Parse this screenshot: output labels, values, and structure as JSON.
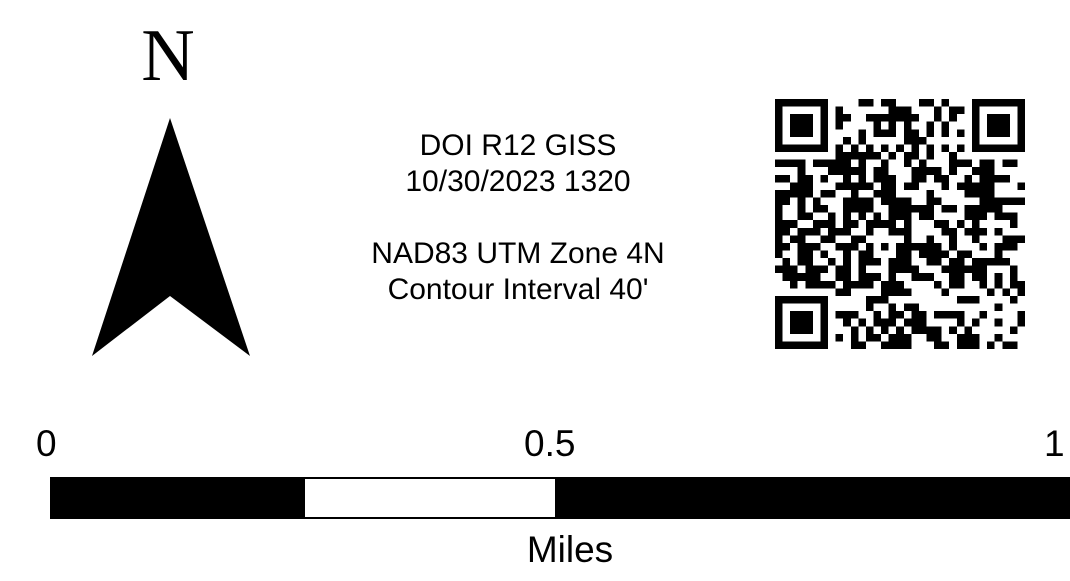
{
  "north_arrow": {
    "letter": "N",
    "icon": "north-arrow-icon",
    "color": "#000000"
  },
  "info": {
    "agency": "DOI R12 GISS",
    "datetime": "10/30/2023 1320",
    "projection": "NAD83 UTM Zone 4N",
    "contour": "Contour Interval 40'"
  },
  "qr_code": {
    "icon": "qr-code-icon"
  },
  "scale_bar": {
    "labels": [
      "0",
      "0.5",
      "1"
    ],
    "unit": "Miles",
    "segments": [
      "black",
      "white",
      "black"
    ],
    "colors": {
      "dark": "#000000",
      "light": "#ffffff"
    }
  }
}
